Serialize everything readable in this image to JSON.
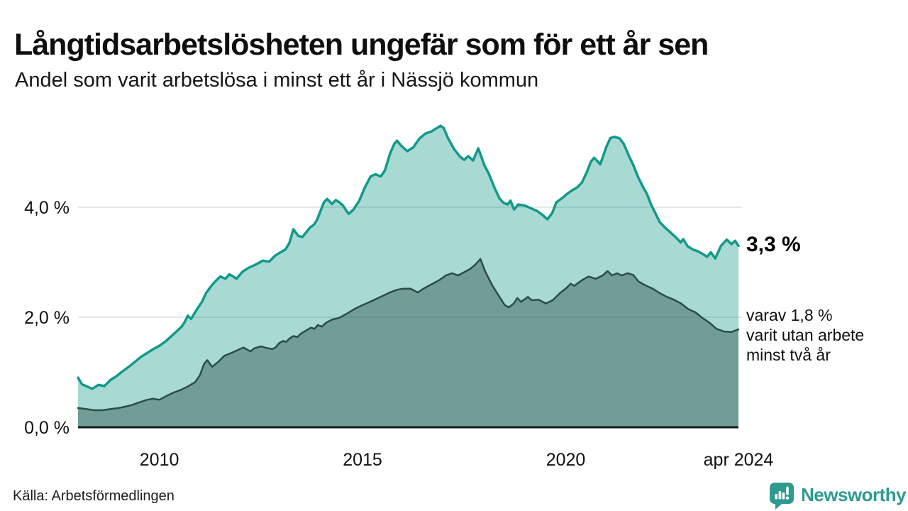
{
  "header": {
    "title": "Långtidsarbetslösheten ungefär som för ett år sen",
    "subtitle": "Andel som varit arbetslösa i minst ett år i Nässjö kommun"
  },
  "colors": {
    "accent_teal": "#12998a",
    "area_light_fill": "#a8d9d3",
    "area_dark_fill": "#6f9d98",
    "line_dark": "#2b4d46",
    "grid": "#e4e6e9",
    "axis": "#1a1a1a",
    "brand_teal": "#2f9a8f",
    "text": "#111111"
  },
  "annotations": {
    "value_label": "3,3 %",
    "note": "varav 1,8 %\nvarit utan arbete\nminst två år"
  },
  "footer": {
    "source": "Källa: Arbetsförmedlingen",
    "brand": "Newsworthy",
    "brand_icon": "newsworthy-speech-bubble-bar-chart-icon"
  },
  "chart_data": {
    "type": "area",
    "title": "Långtidsarbetslösheten ungefär som för ett år sen",
    "subtitle": "Andel som varit arbetslösa i minst ett år i Nässjö kommun",
    "unit": "%",
    "xlim": [
      2008,
      2024.25
    ],
    "ylim": [
      0,
      5.8
    ],
    "grid": "horizontal",
    "legend_position": "none",
    "y_ticks": [
      {
        "label": "0,0 %",
        "value": 0
      },
      {
        "label": "2,0 %",
        "value": 2
      },
      {
        "label": "4,0 %",
        "value": 4
      }
    ],
    "x_ticks": [
      {
        "label": "2010",
        "year": 2010
      },
      {
        "label": "2015",
        "year": 2015
      },
      {
        "label": "2020",
        "year": 2020
      },
      {
        "label": "apr 2024",
        "year": 2024.25
      }
    ],
    "series": [
      {
        "id": "unemployed-1year",
        "name": "Andel arbetslösa minst ett år",
        "end_label": "3,3 %",
        "end_value": 3.3,
        "stroke": "#12998a",
        "stroke_width": 3.5,
        "fill": "rgba(25,154,139,0.38)",
        "points": [
          [
            2008.0,
            0.9
          ],
          [
            2008.1,
            0.78
          ],
          [
            2008.35,
            0.7
          ],
          [
            2008.5,
            0.77
          ],
          [
            2008.65,
            0.75
          ],
          [
            2008.8,
            0.86
          ],
          [
            2008.95,
            0.93
          ],
          [
            2009.1,
            1.02
          ],
          [
            2009.25,
            1.1
          ],
          [
            2009.4,
            1.19
          ],
          [
            2009.55,
            1.28
          ],
          [
            2009.7,
            1.35
          ],
          [
            2009.85,
            1.42
          ],
          [
            2010.0,
            1.48
          ],
          [
            2010.15,
            1.56
          ],
          [
            2010.3,
            1.66
          ],
          [
            2010.45,
            1.76
          ],
          [
            2010.55,
            1.83
          ],
          [
            2010.63,
            1.92
          ],
          [
            2010.7,
            2.03
          ],
          [
            2010.78,
            1.97
          ],
          [
            2010.93,
            2.15
          ],
          [
            2011.05,
            2.28
          ],
          [
            2011.15,
            2.44
          ],
          [
            2011.28,
            2.57
          ],
          [
            2011.4,
            2.67
          ],
          [
            2011.5,
            2.74
          ],
          [
            2011.63,
            2.7
          ],
          [
            2011.72,
            2.78
          ],
          [
            2011.82,
            2.74
          ],
          [
            2011.9,
            2.7
          ],
          [
            2012.05,
            2.83
          ],
          [
            2012.2,
            2.9
          ],
          [
            2012.35,
            2.95
          ],
          [
            2012.55,
            3.03
          ],
          [
            2012.7,
            3.01
          ],
          [
            2012.85,
            3.12
          ],
          [
            2013.0,
            3.19
          ],
          [
            2013.1,
            3.23
          ],
          [
            2013.2,
            3.35
          ],
          [
            2013.3,
            3.6
          ],
          [
            2013.42,
            3.48
          ],
          [
            2013.52,
            3.46
          ],
          [
            2013.62,
            3.55
          ],
          [
            2013.72,
            3.64
          ],
          [
            2013.8,
            3.68
          ],
          [
            2013.88,
            3.77
          ],
          [
            2013.96,
            3.92
          ],
          [
            2014.05,
            4.09
          ],
          [
            2014.13,
            4.15
          ],
          [
            2014.25,
            4.06
          ],
          [
            2014.34,
            4.13
          ],
          [
            2014.43,
            4.09
          ],
          [
            2014.52,
            4.03
          ],
          [
            2014.6,
            3.94
          ],
          [
            2014.66,
            3.88
          ],
          [
            2014.78,
            3.96
          ],
          [
            2014.92,
            4.12
          ],
          [
            2015.05,
            4.35
          ],
          [
            2015.2,
            4.56
          ],
          [
            2015.32,
            4.6
          ],
          [
            2015.45,
            4.56
          ],
          [
            2015.55,
            4.67
          ],
          [
            2015.68,
            4.98
          ],
          [
            2015.78,
            5.15
          ],
          [
            2015.85,
            5.21
          ],
          [
            2015.95,
            5.12
          ],
          [
            2016.1,
            5.02
          ],
          [
            2016.25,
            5.09
          ],
          [
            2016.4,
            5.25
          ],
          [
            2016.55,
            5.34
          ],
          [
            2016.7,
            5.38
          ],
          [
            2016.92,
            5.48
          ],
          [
            2017.0,
            5.44
          ],
          [
            2017.1,
            5.26
          ],
          [
            2017.25,
            5.06
          ],
          [
            2017.4,
            4.92
          ],
          [
            2017.5,
            4.86
          ],
          [
            2017.6,
            4.93
          ],
          [
            2017.72,
            4.85
          ],
          [
            2017.85,
            5.07
          ],
          [
            2018.0,
            4.76
          ],
          [
            2018.1,
            4.62
          ],
          [
            2018.25,
            4.35
          ],
          [
            2018.37,
            4.16
          ],
          [
            2018.47,
            4.08
          ],
          [
            2018.57,
            4.05
          ],
          [
            2018.64,
            4.12
          ],
          [
            2018.73,
            3.96
          ],
          [
            2018.83,
            4.05
          ],
          [
            2019.0,
            4.03
          ],
          [
            2019.15,
            3.98
          ],
          [
            2019.3,
            3.93
          ],
          [
            2019.43,
            3.86
          ],
          [
            2019.55,
            3.78
          ],
          [
            2019.67,
            3.9
          ],
          [
            2019.77,
            4.09
          ],
          [
            2019.9,
            4.16
          ],
          [
            2020.03,
            4.24
          ],
          [
            2020.16,
            4.31
          ],
          [
            2020.28,
            4.36
          ],
          [
            2020.4,
            4.45
          ],
          [
            2020.52,
            4.64
          ],
          [
            2020.62,
            4.83
          ],
          [
            2020.7,
            4.9
          ],
          [
            2020.85,
            4.78
          ],
          [
            2021.0,
            5.1
          ],
          [
            2021.1,
            5.26
          ],
          [
            2021.2,
            5.28
          ],
          [
            2021.33,
            5.25
          ],
          [
            2021.43,
            5.15
          ],
          [
            2021.55,
            4.94
          ],
          [
            2021.66,
            4.77
          ],
          [
            2021.78,
            4.55
          ],
          [
            2021.9,
            4.37
          ],
          [
            2022.0,
            4.24
          ],
          [
            2022.1,
            4.05
          ],
          [
            2022.2,
            3.9
          ],
          [
            2022.31,
            3.73
          ],
          [
            2022.43,
            3.64
          ],
          [
            2022.55,
            3.56
          ],
          [
            2022.7,
            3.46
          ],
          [
            2022.83,
            3.36
          ],
          [
            2022.89,
            3.42
          ],
          [
            2023.0,
            3.29
          ],
          [
            2023.13,
            3.23
          ],
          [
            2023.25,
            3.2
          ],
          [
            2023.37,
            3.15
          ],
          [
            2023.48,
            3.1
          ],
          [
            2023.57,
            3.18
          ],
          [
            2023.68,
            3.07
          ],
          [
            2023.82,
            3.3
          ],
          [
            2023.96,
            3.41
          ],
          [
            2024.08,
            3.33
          ],
          [
            2024.17,
            3.39
          ],
          [
            2024.25,
            3.3
          ]
        ]
      },
      {
        "id": "unemployed-2years",
        "name": "Andel arbetslösa minst två år",
        "end_label": "varav 1,8 % varit utan arbete minst två år",
        "end_value": 1.8,
        "stroke": "#2b4d46",
        "stroke_width": 2.5,
        "fill": "rgba(54,90,82,0.47)",
        "points": [
          [
            2008.0,
            0.35
          ],
          [
            2008.2,
            0.33
          ],
          [
            2008.4,
            0.31
          ],
          [
            2008.6,
            0.31
          ],
          [
            2008.8,
            0.33
          ],
          [
            2009.0,
            0.35
          ],
          [
            2009.2,
            0.38
          ],
          [
            2009.35,
            0.41
          ],
          [
            2009.5,
            0.45
          ],
          [
            2009.7,
            0.5
          ],
          [
            2009.85,
            0.52
          ],
          [
            2010.0,
            0.5
          ],
          [
            2010.18,
            0.57
          ],
          [
            2010.35,
            0.63
          ],
          [
            2010.5,
            0.67
          ],
          [
            2010.7,
            0.74
          ],
          [
            2010.88,
            0.82
          ],
          [
            2011.0,
            0.95
          ],
          [
            2011.1,
            1.15
          ],
          [
            2011.18,
            1.22
          ],
          [
            2011.3,
            1.1
          ],
          [
            2011.45,
            1.19
          ],
          [
            2011.6,
            1.3
          ],
          [
            2011.8,
            1.36
          ],
          [
            2011.98,
            1.42
          ],
          [
            2012.07,
            1.45
          ],
          [
            2012.24,
            1.38
          ],
          [
            2012.35,
            1.44
          ],
          [
            2012.5,
            1.47
          ],
          [
            2012.65,
            1.44
          ],
          [
            2012.78,
            1.42
          ],
          [
            2012.86,
            1.45
          ],
          [
            2012.95,
            1.53
          ],
          [
            2013.05,
            1.57
          ],
          [
            2013.12,
            1.55
          ],
          [
            2013.2,
            1.61
          ],
          [
            2013.3,
            1.66
          ],
          [
            2013.4,
            1.64
          ],
          [
            2013.48,
            1.7
          ],
          [
            2013.57,
            1.74
          ],
          [
            2013.73,
            1.81
          ],
          [
            2013.82,
            1.79
          ],
          [
            2013.9,
            1.86
          ],
          [
            2014.0,
            1.83
          ],
          [
            2014.1,
            1.9
          ],
          [
            2014.26,
            1.96
          ],
          [
            2014.43,
            1.99
          ],
          [
            2014.6,
            2.06
          ],
          [
            2014.8,
            2.15
          ],
          [
            2015.0,
            2.22
          ],
          [
            2015.15,
            2.27
          ],
          [
            2015.3,
            2.32
          ],
          [
            2015.5,
            2.39
          ],
          [
            2015.7,
            2.46
          ],
          [
            2015.85,
            2.5
          ],
          [
            2016.0,
            2.52
          ],
          [
            2016.18,
            2.52
          ],
          [
            2016.36,
            2.45
          ],
          [
            2016.5,
            2.52
          ],
          [
            2016.7,
            2.6
          ],
          [
            2016.9,
            2.68
          ],
          [
            2017.05,
            2.76
          ],
          [
            2017.2,
            2.8
          ],
          [
            2017.35,
            2.76
          ],
          [
            2017.5,
            2.82
          ],
          [
            2017.65,
            2.88
          ],
          [
            2017.78,
            2.96
          ],
          [
            2017.9,
            3.06
          ],
          [
            2018.02,
            2.83
          ],
          [
            2018.2,
            2.57
          ],
          [
            2018.37,
            2.37
          ],
          [
            2018.5,
            2.22
          ],
          [
            2018.6,
            2.18
          ],
          [
            2018.72,
            2.25
          ],
          [
            2018.81,
            2.35
          ],
          [
            2018.9,
            2.28
          ],
          [
            2019.07,
            2.37
          ],
          [
            2019.16,
            2.31
          ],
          [
            2019.33,
            2.32
          ],
          [
            2019.51,
            2.25
          ],
          [
            2019.68,
            2.31
          ],
          [
            2019.86,
            2.44
          ],
          [
            2020.03,
            2.54
          ],
          [
            2020.12,
            2.61
          ],
          [
            2020.21,
            2.57
          ],
          [
            2020.39,
            2.67
          ],
          [
            2020.56,
            2.74
          ],
          [
            2020.74,
            2.7
          ],
          [
            2020.91,
            2.76
          ],
          [
            2021.03,
            2.84
          ],
          [
            2021.14,
            2.76
          ],
          [
            2021.26,
            2.8
          ],
          [
            2021.38,
            2.76
          ],
          [
            2021.52,
            2.8
          ],
          [
            2021.66,
            2.77
          ],
          [
            2021.79,
            2.65
          ],
          [
            2021.96,
            2.58
          ],
          [
            2022.14,
            2.52
          ],
          [
            2022.31,
            2.44
          ],
          [
            2022.49,
            2.37
          ],
          [
            2022.66,
            2.32
          ],
          [
            2022.84,
            2.25
          ],
          [
            2023.01,
            2.15
          ],
          [
            2023.19,
            2.09
          ],
          [
            2023.36,
            1.99
          ],
          [
            2023.54,
            1.9
          ],
          [
            2023.71,
            1.79
          ],
          [
            2023.89,
            1.74
          ],
          [
            2024.07,
            1.73
          ],
          [
            2024.25,
            1.78
          ]
        ]
      }
    ]
  }
}
